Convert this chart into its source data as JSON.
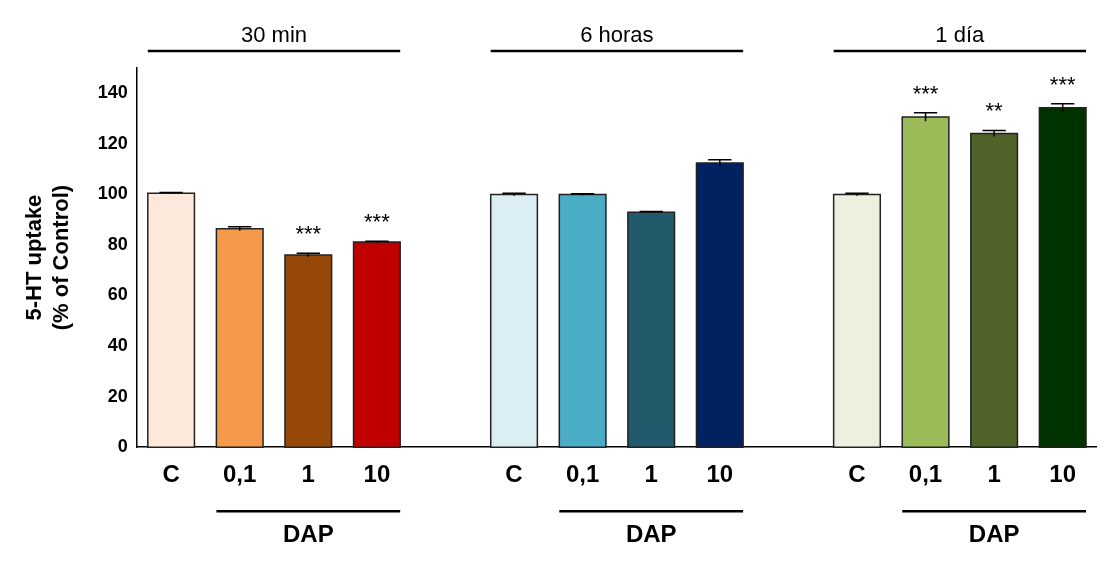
{
  "chart_data": {
    "type": "bar",
    "ylabel": "5-HT uptake\n(% of Control)",
    "categories": [
      "C",
      "0,1",
      "1",
      "10",
      null,
      "C",
      "0,1",
      "1",
      "10",
      null,
      "C",
      "0,1",
      "1",
      "10"
    ],
    "values": [
      100.5,
      86.4,
      76,
      81.2,
      null,
      100,
      100,
      92.9,
      112.4,
      null,
      100,
      130.6,
      124.1,
      134.3
    ],
    "errors": [
      0.3,
      0.8,
      0.7,
      0.3,
      null,
      0.5,
      0.3,
      0.3,
      1.3,
      null,
      0.5,
      1.7,
      1.2,
      1.6
    ],
    "colors": [
      "#fce9dc",
      "#f5994a",
      "#964808",
      "#c00000",
      null,
      "#dbeef4",
      "#4bacc6",
      "#215b6b",
      "#022160",
      null,
      "#ebf1de",
      "#9bbb59",
      "#4f6228",
      "#003300"
    ],
    "value_labels": [
      null,
      null,
      "***",
      "***",
      null,
      null,
      null,
      null,
      null,
      null,
      null,
      "***",
      "**",
      "***"
    ],
    "annotations": [
      "30 min",
      "6 horas",
      "1 día",
      "DAP",
      "DAP",
      "DAP"
    ],
    "ylim": [
      0,
      150
    ],
    "yticks": [
      0,
      20,
      40,
      60,
      80,
      100,
      120,
      140
    ],
    "grid": false,
    "legend": false
  }
}
